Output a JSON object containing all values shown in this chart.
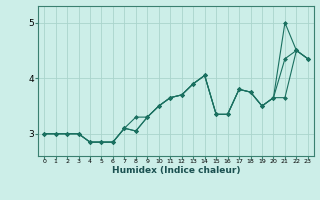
{
  "xlabel": "Humidex (Indice chaleur)",
  "background_color": "#cceee8",
  "grid_color": "#aad4cc",
  "line_color": "#1a7060",
  "xlim": [
    -0.5,
    23.5
  ],
  "ylim": [
    2.6,
    5.3
  ],
  "yticks": [
    3,
    4,
    5
  ],
  "x_data": [
    0,
    1,
    2,
    3,
    4,
    5,
    6,
    7,
    8,
    9,
    10,
    11,
    12,
    13,
    14,
    15,
    16,
    17,
    18,
    19,
    20,
    21,
    22,
    23
  ],
  "line1_y": [
    3.0,
    3.0,
    3.0,
    3.0,
    2.85,
    2.85,
    2.85,
    3.1,
    3.05,
    3.3,
    3.5,
    3.65,
    3.7,
    3.9,
    4.05,
    3.35,
    3.35,
    3.8,
    3.75,
    3.5,
    3.65,
    3.65,
    4.5,
    4.35
  ],
  "line2_y": [
    3.0,
    3.0,
    3.0,
    3.0,
    2.85,
    2.85,
    2.85,
    3.1,
    3.05,
    3.3,
    3.5,
    3.65,
    3.7,
    3.9,
    4.05,
    3.35,
    3.35,
    3.8,
    3.75,
    3.5,
    3.65,
    5.0,
    4.5,
    4.35
  ],
  "line3_y": [
    3.0,
    3.0,
    3.0,
    3.0,
    2.85,
    2.85,
    2.85,
    3.1,
    3.3,
    3.3,
    3.5,
    3.65,
    3.7,
    3.9,
    4.05,
    3.35,
    3.35,
    3.8,
    3.75,
    3.5,
    3.65,
    4.35,
    4.5,
    4.35
  ]
}
